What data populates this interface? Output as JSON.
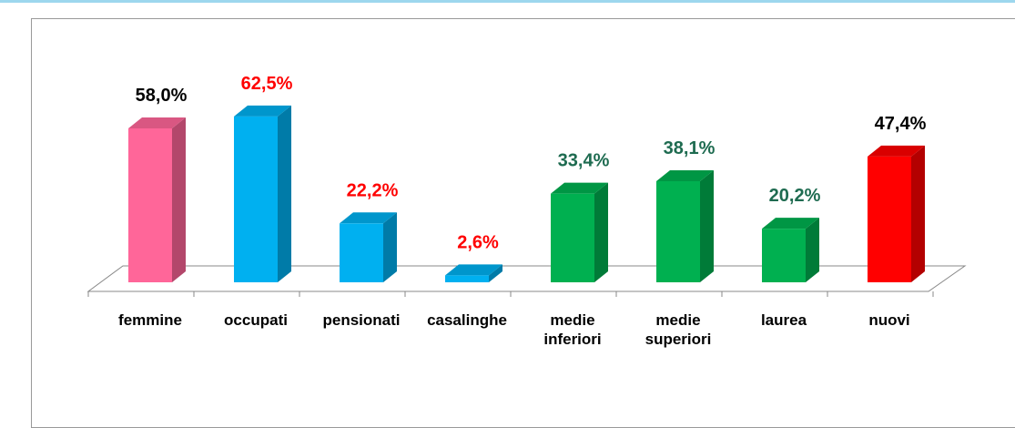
{
  "chart_data": {
    "type": "bar3d",
    "categories": [
      "femmine",
      "occupati",
      "pensionati",
      "casalinghe",
      "medie inferiori",
      "medie superiori",
      "laurea",
      "nuovi"
    ],
    "values": [
      58.0,
      62.5,
      22.2,
      2.6,
      33.4,
      38.1,
      20.2,
      47.4
    ],
    "value_labels": [
      "58,0%",
      "62,5%",
      "22,2%",
      "2,6%",
      "33,4%",
      "38,1%",
      "20,2%",
      "47,4%"
    ],
    "colors": [
      "#ff6699",
      "#00b0f0",
      "#00b0f0",
      "#00b0f0",
      "#00b050",
      "#00b050",
      "#00b050",
      "#ff0000"
    ],
    "label_colors": [
      "#000000",
      "#ff0000",
      "#ff0000",
      "#ff0000",
      "#1e6b50",
      "#1e6b50",
      "#1e6b50",
      "#000000"
    ],
    "ylim": [
      0,
      70
    ]
  }
}
